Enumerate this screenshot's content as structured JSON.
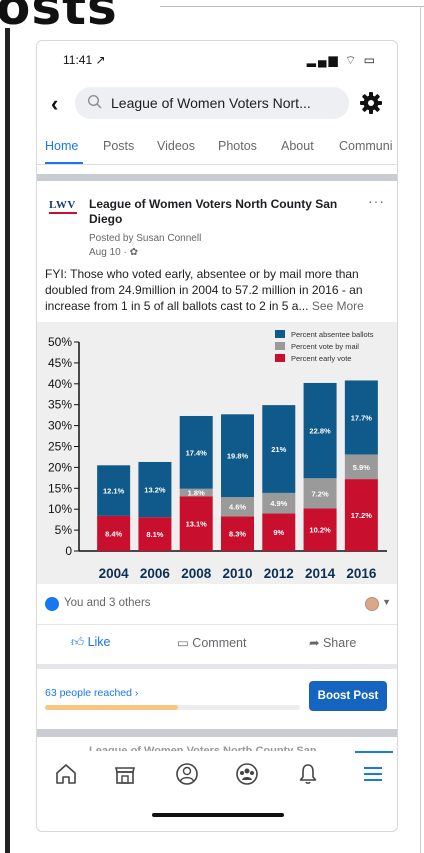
{
  "overlay": {
    "heading": "osts"
  },
  "status_bar": {
    "time": "11:41 ↗",
    "icons": "▂▄▆ ⌔ ▭"
  },
  "search": {
    "text": "League of Women Voters Nort..."
  },
  "tabs": [
    {
      "label": "Home",
      "active": true
    },
    {
      "label": "Posts"
    },
    {
      "label": "Videos"
    },
    {
      "label": "Photos"
    },
    {
      "label": "About"
    },
    {
      "label": "Communi"
    }
  ],
  "post": {
    "logo": "LWV",
    "page_name": "League of Women Voters North County San Diego",
    "posted_by": "Posted by Susan Connell",
    "date": "Aug 10 ·",
    "more": "···",
    "text": "FYI: Those who voted early, absentee or by mail more than doubled from 24.9million in 2004 to 57.2 million in 2016 - an increase from 1 in 5 of all ballots cast to 2 in 5 a...",
    "see_more": "See More"
  },
  "chart_data": {
    "type": "bar",
    "stacked": true,
    "categories": [
      "2004",
      "2006",
      "2008",
      "2010",
      "2012",
      "2014",
      "2016"
    ],
    "series": [
      {
        "name": "Percent early vote",
        "color": "#c8102e",
        "values": [
          8.4,
          8.1,
          13.1,
          8.3,
          9,
          10.2,
          17.2
        ],
        "labels": [
          "8.4%",
          "8.1%",
          "13.1%",
          "8.3%",
          "9%",
          "10.2%",
          "17.2%"
        ]
      },
      {
        "name": "Percent vote by mail",
        "color": "#9a9a9a",
        "values": [
          0,
          0,
          1.8,
          4.6,
          4.9,
          7.2,
          5.9
        ],
        "labels": [
          "",
          "",
          "1.8%",
          "4.6%",
          "4.9%",
          "7.2%",
          "5.9%"
        ]
      },
      {
        "name": "Percent absentee ballots",
        "color": "#0f5a8a",
        "values": [
          12.1,
          13.2,
          17.4,
          19.8,
          21,
          22.8,
          17.7
        ],
        "labels": [
          "12.1%",
          "13.2%",
          "17.4%",
          "19.8%",
          "21%",
          "22.8%",
          "17.7%"
        ]
      }
    ],
    "yticks": [
      "0",
      "5%",
      "10%",
      "15%",
      "20%",
      "25%",
      "30%",
      "35%",
      "40%",
      "45%",
      "50%"
    ],
    "ylim": [
      0,
      50
    ],
    "legend_order": [
      "Percent absentee ballots",
      "Percent vote by mail",
      "Percent early vote"
    ],
    "legend_position": "top-right",
    "grid": false
  },
  "reactions": {
    "text": "You and 3 others"
  },
  "actions": {
    "like": "Like",
    "comment": "Comment",
    "share": "Share"
  },
  "insights": {
    "reached": "63 people reached ›",
    "reach_fraction": 0.52
  },
  "boost": {
    "label": "Boost Post"
  },
  "peek": {
    "text": "League of Women Voters North County San"
  },
  "colors": {
    "accent": "#1877f2",
    "boost": "#1565c0"
  }
}
